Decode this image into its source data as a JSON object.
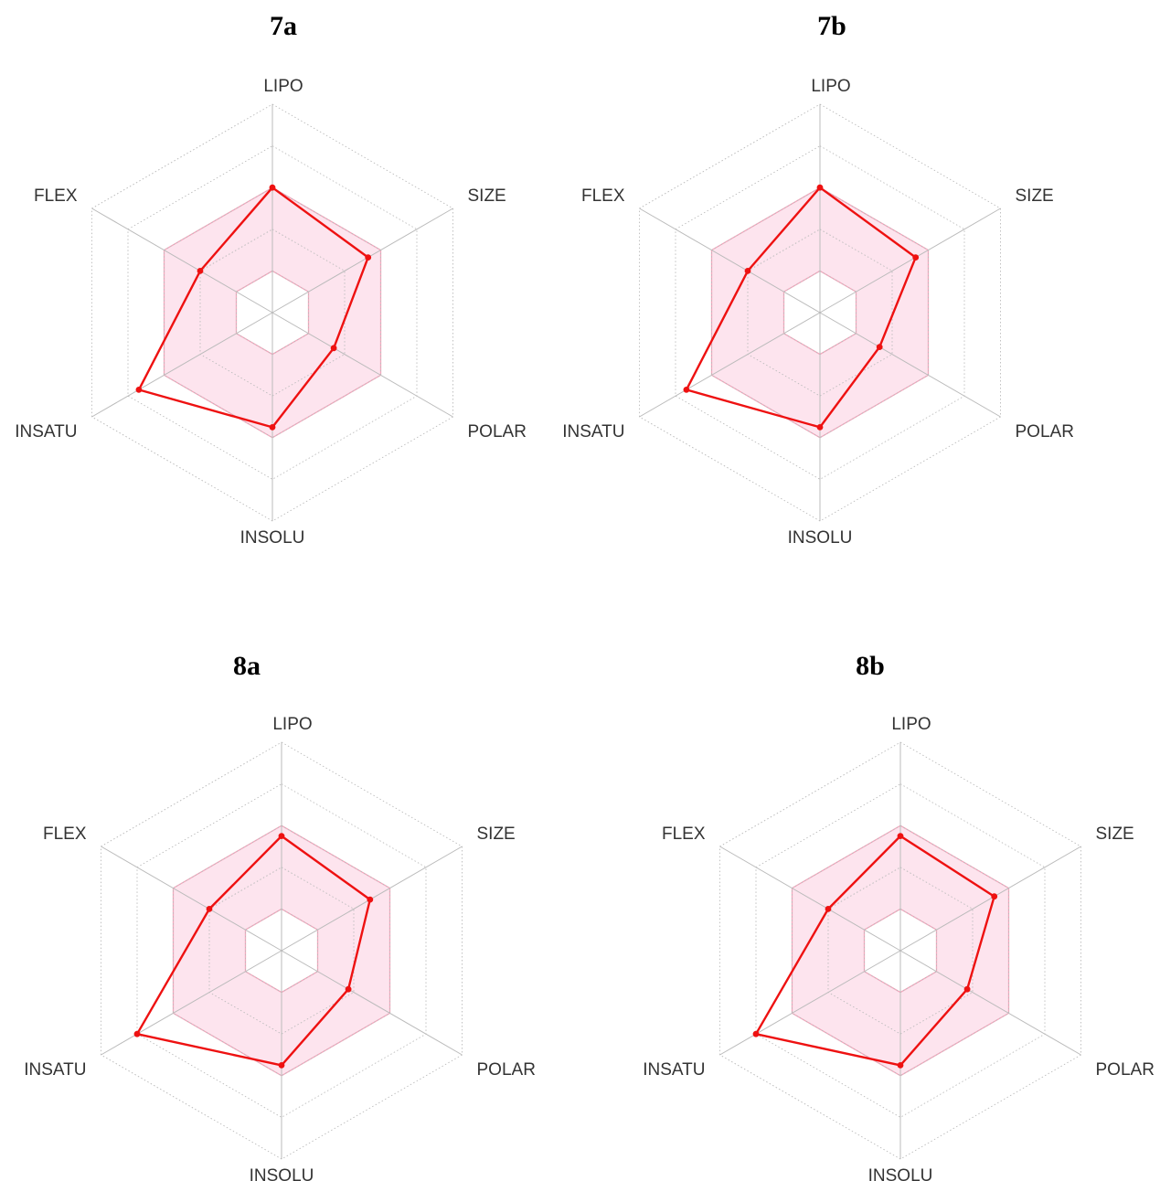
{
  "chart_data": [
    {
      "type": "radar",
      "title": "7a",
      "axes": [
        "LIPO",
        "SIZE",
        "POLAR",
        "INSOLU",
        "INSATU",
        "FLEX"
      ],
      "range": [
        0,
        1
      ],
      "grid_levels": 5,
      "optimal_range": {
        "lower": [
          0.2,
          0.2,
          0.2,
          0.2,
          0.2,
          0.2
        ],
        "upper": [
          0.6,
          0.6,
          0.6,
          0.6,
          0.6,
          0.6
        ]
      },
      "values": [
        0.6,
        0.53,
        0.34,
        0.55,
        0.74,
        0.4
      ]
    },
    {
      "type": "radar",
      "title": "7b",
      "axes": [
        "LIPO",
        "SIZE",
        "POLAR",
        "INSOLU",
        "INSATU",
        "FLEX"
      ],
      "range": [
        0,
        1
      ],
      "grid_levels": 5,
      "optimal_range": {
        "lower": [
          0.2,
          0.2,
          0.2,
          0.2,
          0.2,
          0.2
        ],
        "upper": [
          0.6,
          0.6,
          0.6,
          0.6,
          0.6,
          0.6
        ]
      },
      "values": [
        0.6,
        0.53,
        0.33,
        0.55,
        0.74,
        0.4
      ]
    },
    {
      "type": "radar",
      "title": "8a",
      "axes": [
        "LIPO",
        "SIZE",
        "POLAR",
        "INSOLU",
        "INSATU",
        "FLEX"
      ],
      "range": [
        0,
        1
      ],
      "grid_levels": 5,
      "optimal_range": {
        "lower": [
          0.2,
          0.2,
          0.2,
          0.2,
          0.2,
          0.2
        ],
        "upper": [
          0.6,
          0.6,
          0.6,
          0.6,
          0.6,
          0.6
        ]
      },
      "values": [
        0.55,
        0.49,
        0.37,
        0.55,
        0.8,
        0.4
      ]
    },
    {
      "type": "radar",
      "title": "8b",
      "axes": [
        "LIPO",
        "SIZE",
        "POLAR",
        "INSOLU",
        "INSATU",
        "FLEX"
      ],
      "range": [
        0,
        1
      ],
      "grid_levels": 5,
      "optimal_range": {
        "lower": [
          0.2,
          0.2,
          0.2,
          0.2,
          0.2,
          0.2
        ],
        "upper": [
          0.6,
          0.6,
          0.6,
          0.6,
          0.6,
          0.6
        ]
      },
      "values": [
        0.55,
        0.52,
        0.37,
        0.55,
        0.8,
        0.4
      ]
    }
  ],
  "colors": {
    "line": "#ee1111",
    "fill": "#fde4ee",
    "fill_border": "#f2a8bd",
    "grid": "#bbbbbb",
    "spoke": "#bbbbbb"
  }
}
